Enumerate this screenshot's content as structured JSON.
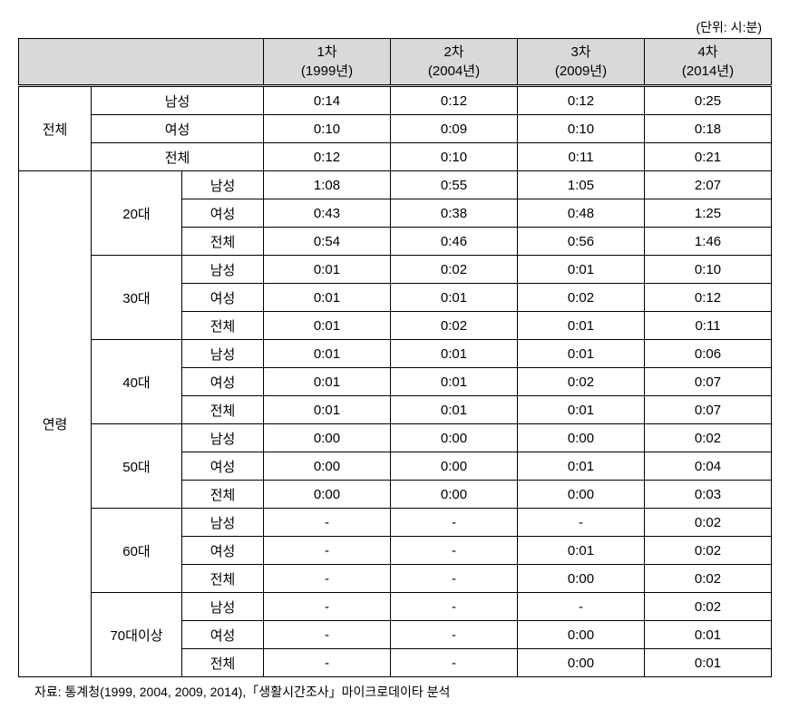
{
  "unit_label": "(단위: 시:분)",
  "header": {
    "col1": "1차\n(1999년)",
    "col2": "2차\n(2004년)",
    "col3": "3차\n(2009년)",
    "col4": "4차\n(2014년)"
  },
  "group_labels": {
    "overall": "전체",
    "age": "연령"
  },
  "sub_labels": {
    "male": "남성",
    "female": "여성",
    "total": "전체",
    "a20": "20대",
    "a30": "30대",
    "a40": "40대",
    "a50": "50대",
    "a60": "60대",
    "a70": "70대이상"
  },
  "rows": {
    "ov_m": [
      "0:14",
      "0:12",
      "0:12",
      "0:25"
    ],
    "ov_f": [
      "0:10",
      "0:09",
      "0:10",
      "0:18"
    ],
    "ov_t": [
      "0:12",
      "0:10",
      "0:11",
      "0:21"
    ],
    "a20_m": [
      "1:08",
      "0:55",
      "1:05",
      "2:07"
    ],
    "a20_f": [
      "0:43",
      "0:38",
      "0:48",
      "1:25"
    ],
    "a20_t": [
      "0:54",
      "0:46",
      "0:56",
      "1:46"
    ],
    "a30_m": [
      "0:01",
      "0:02",
      "0:01",
      "0:10"
    ],
    "a30_f": [
      "0:01",
      "0:01",
      "0:02",
      "0:12"
    ],
    "a30_t": [
      "0:01",
      "0:02",
      "0:01",
      "0:11"
    ],
    "a40_m": [
      "0:01",
      "0:01",
      "0:01",
      "0:06"
    ],
    "a40_f": [
      "0:01",
      "0:01",
      "0:02",
      "0:07"
    ],
    "a40_t": [
      "0:01",
      "0:01",
      "0:01",
      "0:07"
    ],
    "a50_m": [
      "0:00",
      "0:00",
      "0:00",
      "0:02"
    ],
    "a50_f": [
      "0:00",
      "0:00",
      "0:01",
      "0:04"
    ],
    "a50_t": [
      "0:00",
      "0:00",
      "0:00",
      "0:03"
    ],
    "a60_m": [
      "-",
      "-",
      "-",
      "0:02"
    ],
    "a60_f": [
      "-",
      "-",
      "0:01",
      "0:02"
    ],
    "a60_t": [
      "-",
      "-",
      "0:00",
      "0:02"
    ],
    "a70_m": [
      "-",
      "-",
      "-",
      "0:02"
    ],
    "a70_f": [
      "-",
      "-",
      "0:00",
      "0:01"
    ],
    "a70_t": [
      "-",
      "-",
      "0:00",
      "0:01"
    ]
  },
  "source": "자료: 통계청(1999, 2004, 2009, 2014),「생활시간조사」마이크로데이타 분석",
  "style": {
    "header_bg": "#d9d9d9",
    "border_color": "#000000",
    "text_color": "#000000",
    "font_size_cell": 15,
    "font_size_meta": 14
  }
}
